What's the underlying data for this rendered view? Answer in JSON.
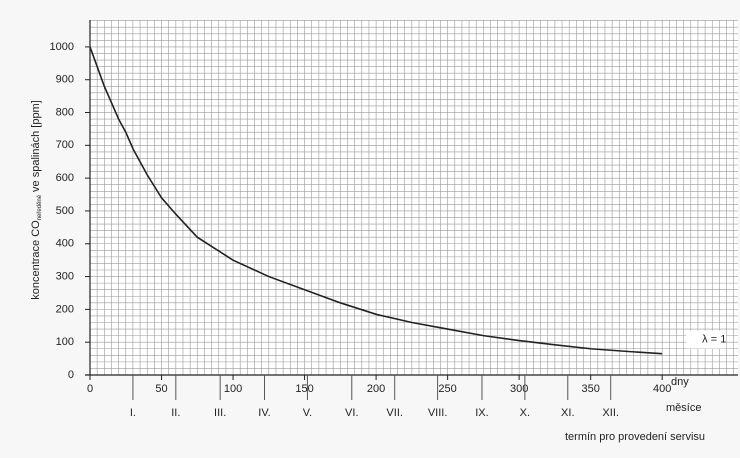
{
  "chart_data": {
    "type": "line",
    "y_label_main": "koncentrace CO",
    "y_label_sub": "neředěné",
    "y_label_rest": "ve spalinách [ppm]",
    "x_unit": "dny",
    "month_unit": "měsíce",
    "x_caption": "termín pro provedení servisu",
    "x": [
      0,
      10,
      20,
      25,
      30,
      40,
      50,
      60,
      75,
      100,
      125,
      150,
      175,
      200,
      225,
      250,
      275,
      300,
      325,
      350,
      375,
      400
    ],
    "series": [
      {
        "name": "λ = 1",
        "color": "#222222",
        "values": [
          1000,
          880,
          780,
          740,
          690,
          610,
          540,
          490,
          420,
          350,
          300,
          260,
          220,
          185,
          160,
          140,
          120,
          105,
          92,
          80,
          72,
          65
        ]
      }
    ],
    "xlim": [
      0,
      453
    ],
    "ylim": [
      0,
      1082
    ],
    "xticks": [
      0,
      50,
      100,
      150,
      200,
      250,
      300,
      350,
      400
    ],
    "yticks": [
      0,
      100,
      200,
      300,
      400,
      500,
      600,
      700,
      800,
      900,
      1000
    ],
    "month_ticks": [
      {
        "value": 30,
        "label": "I."
      },
      {
        "value": 60,
        "label": "II."
      },
      {
        "value": 91,
        "label": "III."
      },
      {
        "value": 122,
        "label": "IV."
      },
      {
        "value": 152,
        "label": "V."
      },
      {
        "value": 183,
        "label": "VI."
      },
      {
        "value": 213,
        "label": "VII."
      },
      {
        "value": 243,
        "label": "VIII."
      },
      {
        "value": 274,
        "label": "IX."
      },
      {
        "value": 304,
        "label": "X."
      },
      {
        "value": 334,
        "label": "XI."
      },
      {
        "value": 364,
        "label": "XII."
      }
    ],
    "grid": {
      "x_step": 5,
      "y_step": 20
    }
  }
}
